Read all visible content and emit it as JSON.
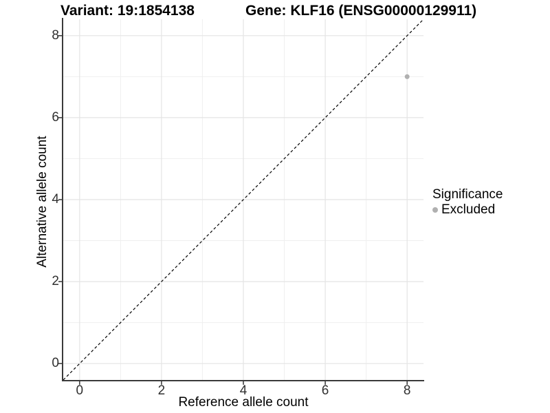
{
  "chart_data": {
    "type": "scatter",
    "titles": [
      "Variant: 19:1854138",
      "Gene: KLF16 (ENSG00000129911)"
    ],
    "xlabel": "Reference allele count",
    "ylabel": "Alternative allele count",
    "xlim": [
      -0.4,
      8.4
    ],
    "ylim": [
      -0.4,
      8.4
    ],
    "x_ticks": [
      0,
      2,
      4,
      6,
      8
    ],
    "y_ticks": [
      0,
      2,
      4,
      6,
      8
    ],
    "x_minor": [
      1,
      3,
      5,
      7
    ],
    "y_minor": [
      1,
      3,
      5,
      7
    ],
    "grid": true,
    "legend_position": "right",
    "series": [
      {
        "name": "Excluded",
        "color": "#b0b0b0",
        "points": [
          [
            8,
            7
          ]
        ]
      }
    ],
    "reference_line": {
      "style": "dashed",
      "color": "#000000",
      "from": [
        -0.4,
        -0.4
      ],
      "to": [
        8.4,
        8.4
      ]
    }
  },
  "legend": {
    "title": "Significance",
    "items": [
      {
        "label": "Excluded",
        "color": "#b0b0b0",
        "marker": "circle-icon"
      }
    ]
  },
  "colors": {
    "background": "#ffffff",
    "grid_major": "#e4e4e4",
    "grid_minor": "#efefef",
    "axis_line": "#3a3a3a",
    "tick_mark": "#333333",
    "tick_text": "#303030"
  }
}
